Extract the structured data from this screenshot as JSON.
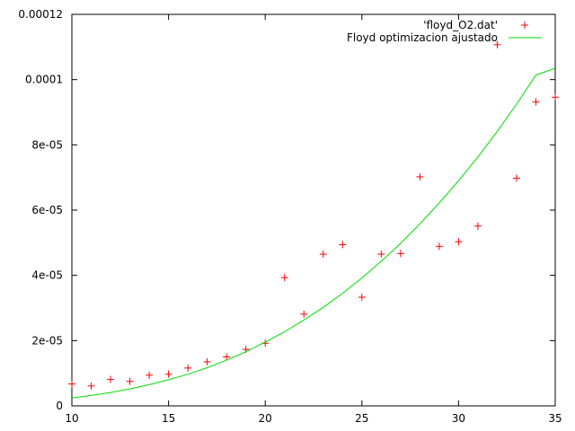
{
  "chart_data": {
    "type": "scatter",
    "title": "",
    "xlabel": "",
    "ylabel": "",
    "xlim": [
      10,
      35
    ],
    "ylim": [
      0,
      0.00012
    ],
    "grid": false,
    "legend_placement": "top-right",
    "x_ticks": [
      10,
      15,
      20,
      25,
      30,
      35
    ],
    "x_tick_labels": [
      "10",
      "15",
      "20",
      "25",
      "30",
      "35"
    ],
    "y_ticks": [
      0,
      2e-05,
      4e-05,
      6e-05,
      8e-05,
      0.0001,
      0.00012
    ],
    "y_tick_labels": [
      "0",
      "2e-05",
      "4e-05",
      "6e-05",
      "8e-05",
      "0.0001",
      "0.00012"
    ],
    "series": [
      {
        "name": "'floyd_O2.dat'",
        "kind": "points",
        "marker": "plus",
        "color": "#ff0000",
        "x": [
          10,
          11,
          12,
          13,
          14,
          15,
          16,
          17,
          18,
          19,
          20,
          21,
          22,
          23,
          24,
          25,
          26,
          27,
          28,
          29,
          30,
          31,
          32,
          33,
          34,
          35
        ],
        "y": [
          6.7e-06,
          6.1e-06,
          8.1e-06,
          7.5e-06,
          9.4e-06,
          9.7e-06,
          1.16e-05,
          1.35e-05,
          1.5e-05,
          1.73e-05,
          1.92e-05,
          3.93e-05,
          2.81e-05,
          4.65e-05,
          4.94e-05,
          3.33e-05,
          4.65e-05,
          4.67e-05,
          7.02e-05,
          4.89e-05,
          5.03e-05,
          5.51e-05,
          0.0001107,
          6.98e-05,
          9.32e-05,
          9.46e-05
        ]
      },
      {
        "name": "Floyd optimizacion ajustado",
        "kind": "line",
        "color": "#00dd00",
        "x": [
          10,
          11,
          12,
          13,
          14,
          15,
          16,
          17,
          18,
          19,
          20,
          21,
          22,
          23,
          24,
          25,
          26,
          27,
          28,
          29,
          30,
          31,
          32,
          33,
          34,
          35
        ],
        "y": [
          2.4e-06,
          3.2e-06,
          4.1e-06,
          5.2e-06,
          6.5e-06,
          8e-06,
          9.7e-06,
          1.17e-05,
          1.4e-05,
          1.66e-05,
          1.95e-05,
          2.27e-05,
          2.63e-05,
          3.02e-05,
          3.45e-05,
          3.92e-05,
          4.43e-05,
          4.98e-05,
          5.58e-05,
          6.22e-05,
          6.9e-05,
          7.63e-05,
          8.41e-05,
          9.25e-05,
          0.0001014,
          0.0001035
        ]
      }
    ]
  }
}
